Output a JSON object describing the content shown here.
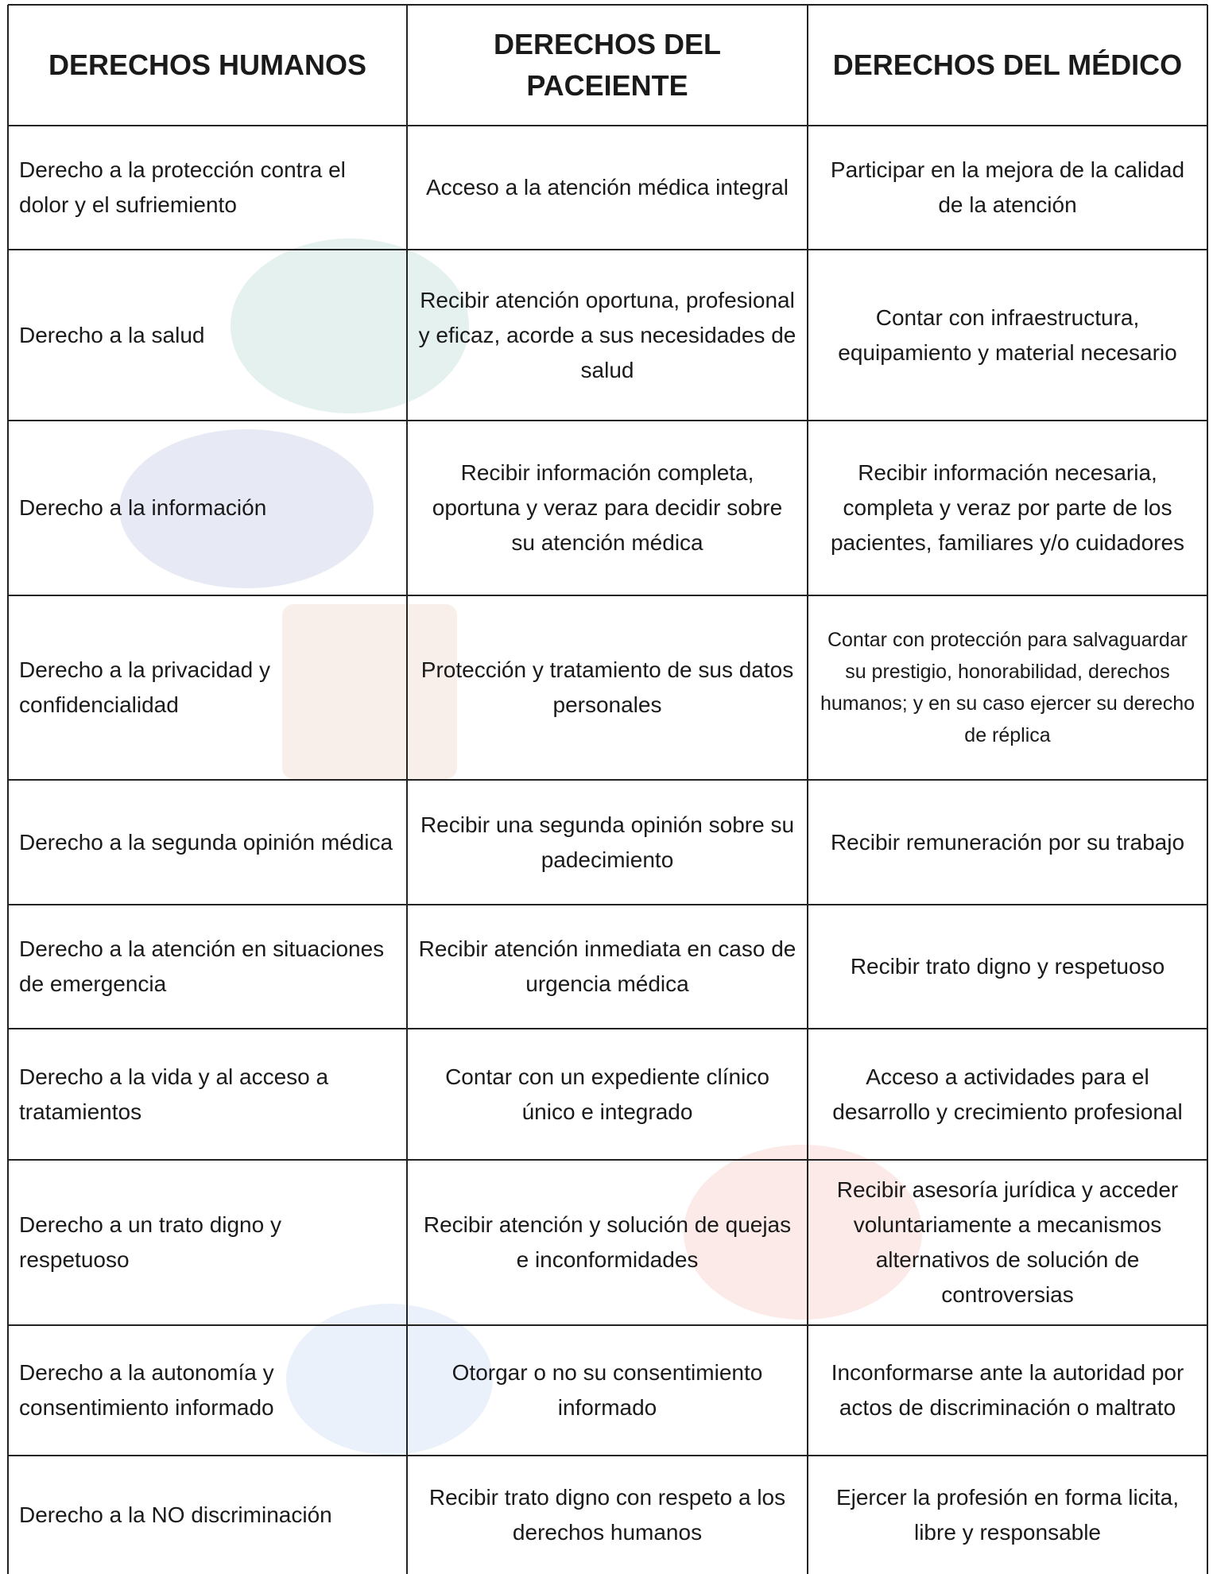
{
  "table": {
    "header": [
      "DERECHOS HUMANOS",
      "DERECHOS DEL PACEIENTE",
      "DERECHOS DEL MÉDICO"
    ],
    "rows": [
      [
        "Derecho a la protección contra el dolor y el sufriemiento",
        "Acceso a la atención médica integral",
        "Participar en la mejora de la calidad de la atención"
      ],
      [
        "Derecho a la salud",
        "Recibir atención oportuna, profesional y eficaz, acorde a sus necesidades de salud",
        "Contar con infraestructura, equipamiento y material necesario"
      ],
      [
        "Derecho a la información",
        "Recibir información completa, oportuna y veraz para decidir sobre su atención médica",
        "Recibir información necesaria, completa y veraz por parte de los pacientes, familiares y/o cuidadores"
      ],
      [
        "Derecho a la privacidad y confidencialidad",
        "Protección y tratamiento de sus datos personales",
        "Contar con protección para salvaguardar su prestigio, honorabilidad, derechos humanos; y en su caso ejercer su derecho de réplica"
      ],
      [
        "Derecho a la segunda opinión médica",
        "Recibir una segunda opinión sobre su padecimiento",
        "Recibir remuneración por su trabajo"
      ],
      [
        "Derecho a la atención en situaciones de emergencia",
        "Recibir atención inmediata en caso de urgencia médica",
        "Recibir trato digno y respetuoso"
      ],
      [
        "Derecho a la vida y al acceso a tratamientos",
        "Contar con un expediente clínico único e integrado",
        "Acceso a actividades para el desarrollo y crecimiento profesional"
      ],
      [
        "Derecho a un trato digno y respetuoso",
        "Recibir atención y solución de quejas e inconformidades",
        "Recibir asesoría jurídica y acceder voluntariamente a mecanismos alternativos de solución de controversias"
      ],
      [
        "Derecho a la autonomía y consentimiento informado",
        "Otorgar o no su consentimiento informado",
        "Inconformarse ante la autoridad por actos de discriminación o maltrato"
      ],
      [
        "Derecho a la NO discriminación",
        "Recibir trato digno con respeto a los derechos humanos",
        "Ejercer la profesión en forma licita, libre y responsable"
      ]
    ]
  }
}
